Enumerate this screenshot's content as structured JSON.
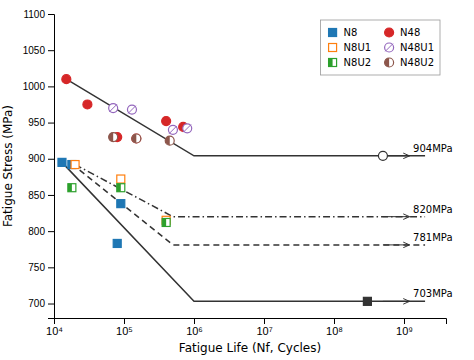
{
  "chart_data": {
    "type": "line",
    "xlabel": "Fatigue Life (Nf, Cycles)",
    "ylabel": "Fatigue Stress (MPa)",
    "log": "x",
    "xlim": [
      10000,
      3981071705.534973
    ],
    "xticks": [
      {
        "value": 10000,
        "label": "10⁴"
      },
      {
        "value": 100000,
        "label": "10⁵"
      },
      {
        "value": 1000000,
        "label": "10⁶"
      },
      {
        "value": 10000000,
        "label": "10⁷"
      },
      {
        "value": 100000000,
        "label": "10⁸"
      },
      {
        "value": 1000000000,
        "label": "10⁹"
      }
    ],
    "ylim": [
      680,
      1100
    ],
    "yticks": [
      700,
      750,
      800,
      850,
      900,
      950,
      1000,
      1050,
      1100
    ],
    "legend": "upper right",
    "series": [
      {
        "type": "line",
        "line_style": "solid",
        "x": [
          15000.0,
          1000000.0,
          2000000000.0
        ],
        "values": [
          1010,
          904,
          904
        ]
      },
      {
        "type": "line",
        "line_style": "solid",
        "x": [
          13000.0,
          1000000.0,
          2000000000.0
        ],
        "values": [
          895,
          703,
          703
        ]
      },
      {
        "type": "line",
        "line_style": "dashdot",
        "x": [
          20000.0,
          500000.0,
          2000000000.0
        ],
        "values": [
          892,
          820,
          820
        ]
      },
      {
        "type": "line",
        "line_style": "dashed",
        "x": [
          18000.0,
          500000.0,
          2000000000.0
        ],
        "values": [
          893,
          781,
          781
        ]
      },
      {
        "type": "scatter",
        "name": "N8",
        "marker": "square",
        "x": [
          13000.0,
          18000.0,
          80000.0,
          90000.0
        ],
        "values": [
          895,
          892,
          783,
          838
        ]
      },
      {
        "type": "scatter",
        "name": "N8U1",
        "marker": "square-open",
        "x": [
          20000.0,
          90000.0,
          400000.0
        ],
        "values": [
          892,
          872,
          815
        ]
      },
      {
        "type": "scatter",
        "name": "N8U2",
        "marker": "square-half",
        "x": [
          18000.0,
          90000.0,
          400000.0
        ],
        "values": [
          860,
          860,
          812
        ]
      },
      {
        "type": "scatter",
        "name": "N48",
        "marker": "circle",
        "x": [
          15000.0,
          30000.0,
          80000.0,
          150000.0,
          400000.0,
          700000.0
        ],
        "values": [
          1010,
          975,
          930,
          928,
          952,
          944
        ]
      },
      {
        "type": "scatter",
        "name": "N48U1",
        "marker": "circle-slash",
        "x": [
          70000.0,
          130000.0,
          500000.0,
          800000.0
        ],
        "values": [
          970,
          968,
          940,
          942
        ]
      },
      {
        "type": "scatter",
        "name": "N48U2",
        "marker": "circle-half",
        "x": [
          70000.0,
          150000.0,
          450000.0
        ],
        "values": [
          930,
          928,
          925
        ]
      },
      {
        "type": "scatter",
        "marker": "circle-open",
        "x": [
          500000000.0
        ],
        "values": [
          904
        ]
      },
      {
        "type": "scatter",
        "marker": "square",
        "x": [
          300000000.0
        ],
        "values": [
          703
        ]
      }
    ],
    "annotations": [
      {
        "text": "904MPa",
        "x": 1350000000.0,
        "y": 904,
        "arrow_start_x": 500000000.0,
        "arrow_end_x": 1200000000.0
      },
      {
        "text": "820MPa",
        "x": 1350000000.0,
        "y": 820,
        "arrow_start_x": 500000000.0,
        "arrow_end_x": 1200000000.0
      },
      {
        "text": "781MPa",
        "x": 1350000000.0,
        "y": 781,
        "arrow_start_x": 500000000.0,
        "arrow_end_x": 1200000000.0
      },
      {
        "text": "703MPa",
        "x": 1350000000.0,
        "y": 703,
        "arrow_start_x": 500000000.0,
        "arrow_end_x": 1200000000.0
      }
    ]
  }
}
